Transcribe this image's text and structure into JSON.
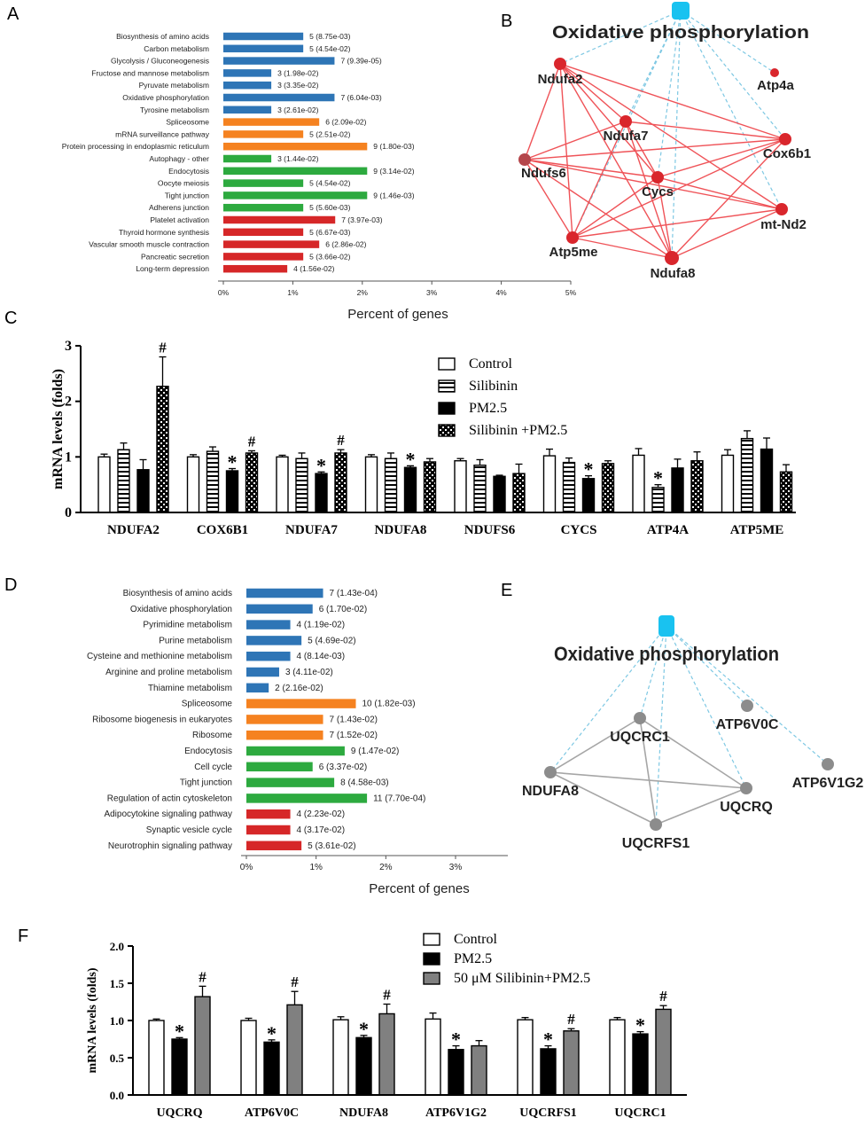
{
  "colors": {
    "blue": "#2E75B6",
    "orange": "#F58220",
    "green": "#2DAA3F",
    "red": "#D62728",
    "node_red": "#D9262C",
    "node_brown": "#B5464B",
    "node_gray": "#8C8C8C",
    "hub": "#19C2F0",
    "edge_red": "#EF5358",
    "edge_gray": "#A6A6A6",
    "edge_dashed": "#7EC8E3",
    "bar_gray": "#808080"
  },
  "panel_letters": [
    "A",
    "B",
    "C",
    "D",
    "E",
    "F"
  ],
  "chart_data": [
    {
      "panel": "A",
      "type": "bar",
      "orientation": "horizontal",
      "xlabel": "Percent of genes",
      "xticks": [
        "0%",
        "1%",
        "2%",
        "3%",
        "4%",
        "5%"
      ],
      "xlim": [
        0,
        5
      ],
      "categories": [
        "Biosynthesis of amino acids",
        "Carbon metabolism",
        "Glycolysis / Gluconeogenesis",
        "Fructose and mannose metabolism",
        "Pyruvate metabolism",
        "Oxidative phosphorylation",
        "Tyrosine metabolism",
        "Spliceosome",
        "mRNA surveillance pathway",
        "Protein processing in endoplasmic reticulum",
        "Autophagy - other",
        "Endocytosis",
        "Oocyte meiosis",
        "Tight junction",
        "Adherens junction",
        "Platelet activation",
        "Thyroid hormone synthesis",
        "Vascular smooth muscle contraction",
        "Pancreatic secretion",
        "Long-term depression"
      ],
      "values": [
        1.15,
        1.15,
        1.6,
        0.69,
        0.69,
        1.6,
        0.69,
        1.38,
        1.15,
        2.07,
        0.69,
        2.07,
        1.15,
        2.07,
        1.15,
        1.61,
        1.15,
        1.38,
        1.15,
        0.92
      ],
      "labels": [
        "5 (8.75e-03)",
        "5 (4.54e-02)",
        "7 (9.39e-05)",
        "3 (1.98e-02)",
        "3 (3.35e-02)",
        "7 (6.04e-03)",
        "3 (2.61e-02)",
        "6 (2.09e-02)",
        "5 (2.51e-02)",
        "9 (1.80e-03)",
        "3 (1.44e-02)",
        "9 (3.14e-02)",
        "5 (4.54e-02)",
        "9 (1.46e-03)",
        "5 (5.60e-03)",
        "7 (3.97e-03)",
        "5 (6.67e-03)",
        "6 (2.86e-02)",
        "5 (3.66e-02)",
        "4 (1.56e-02)"
      ],
      "groups": [
        "blue",
        "blue",
        "blue",
        "blue",
        "blue",
        "blue",
        "blue",
        "orange",
        "orange",
        "orange",
        "green",
        "green",
        "green",
        "green",
        "green",
        "red",
        "red",
        "red",
        "red",
        "red"
      ]
    },
    {
      "panel": "C",
      "type": "bar",
      "ylabel": "mRNA levels (folds)",
      "ylim": [
        0,
        3
      ],
      "yticks": [
        "0",
        "1",
        "2",
        "3"
      ],
      "categories": [
        "NDUFA2",
        "COX6B1",
        "NDUFA7",
        "NDUFA8",
        "NDUFS6",
        "CYCS",
        "ATP4A",
        "ATP5ME"
      ],
      "series": [
        {
          "name": "Control",
          "pattern": "white",
          "values": [
            1.0,
            1.0,
            1.0,
            1.0,
            0.93,
            1.02,
            1.03,
            1.03
          ],
          "errors": [
            0.05,
            0.04,
            0.03,
            0.04,
            0.04,
            0.12,
            0.12,
            0.1
          ]
        },
        {
          "name": "Silibinin",
          "pattern": "hstripe",
          "values": [
            1.13,
            1.1,
            0.97,
            0.97,
            0.85,
            0.9,
            0.45,
            1.33
          ],
          "errors": [
            0.12,
            0.08,
            0.1,
            0.1,
            0.1,
            0.08,
            0.05,
            0.14
          ]
        },
        {
          "name": "PM2.5",
          "pattern": "black",
          "values": [
            0.77,
            0.75,
            0.7,
            0.81,
            0.65,
            0.61,
            0.8,
            1.14
          ],
          "errors": [
            0.18,
            0.04,
            0.03,
            0.03,
            0.02,
            0.05,
            0.16,
            0.2
          ]
        },
        {
          "name": "Silibinin +PM2.5",
          "pattern": "checker",
          "values": [
            2.27,
            1.07,
            1.07,
            0.91,
            0.7,
            0.88,
            0.93,
            0.73
          ],
          "errors": [
            0.53,
            0.04,
            0.06,
            0.06,
            0.17,
            0.05,
            0.16,
            0.13
          ]
        }
      ],
      "annotations": [
        {
          "category": 0,
          "series": 3,
          "text": "#"
        },
        {
          "category": 1,
          "series": 2,
          "text": "*"
        },
        {
          "category": 1,
          "series": 3,
          "text": "#"
        },
        {
          "category": 2,
          "series": 2,
          "text": "*"
        },
        {
          "category": 2,
          "series": 3,
          "text": "#"
        },
        {
          "category": 3,
          "series": 2,
          "text": "*"
        },
        {
          "category": 5,
          "series": 2,
          "text": "*"
        },
        {
          "category": 6,
          "series": 1,
          "text": "*"
        }
      ]
    },
    {
      "panel": "D",
      "type": "bar",
      "orientation": "horizontal",
      "xlabel": "Percent of genes",
      "xticks": [
        "0%",
        "1%",
        "2%",
        "3%"
      ],
      "xlim": [
        0,
        3.75
      ],
      "categories": [
        "Biosynthesis of amino acids",
        "Oxidative phosphorylation",
        "Pyrimidine metabolism",
        "Purine metabolism",
        "Cysteine and methionine metabolism",
        "Arginine and proline metabolism",
        "Thiamine metabolism",
        "Spliceosome",
        "Ribosome biogenesis in eukaryotes",
        "Ribosome",
        "Endocytosis",
        "Cell cycle",
        "Tight junction",
        "Regulation of actin cytoskeleton",
        "Adipocytokine signaling pathway",
        "Synaptic vesicle cycle",
        "Neurotrophin signaling pathway"
      ],
      "values": [
        1.1,
        0.95,
        0.63,
        0.79,
        0.63,
        0.47,
        0.32,
        1.57,
        1.1,
        1.1,
        1.41,
        0.95,
        1.26,
        1.73,
        0.63,
        0.63,
        0.79
      ],
      "labels": [
        "7 (1.43e-04)",
        "6 (1.70e-02)",
        "4 (1.19e-02)",
        "5 (4.69e-02)",
        "4 (8.14e-03)",
        "3 (4.11e-02)",
        "2 (2.16e-02)",
        "10 (1.82e-03)",
        "7 (1.43e-02)",
        "7 (1.52e-02)",
        "9 (1.47e-02)",
        "6 (3.37e-02)",
        "8 (4.58e-03)",
        "11 (7.70e-04)",
        "4 (2.23e-02)",
        "4 (3.17e-02)",
        "5 (3.61e-02)"
      ],
      "groups": [
        "blue",
        "blue",
        "blue",
        "blue",
        "blue",
        "blue",
        "blue",
        "orange",
        "orange",
        "orange",
        "green",
        "green",
        "green",
        "green",
        "red",
        "red",
        "red"
      ]
    },
    {
      "panel": "F",
      "type": "bar",
      "ylabel": "mRNA levels (folds)",
      "ylim": [
        0,
        2
      ],
      "yticks": [
        "0.0",
        "0.5",
        "1.0",
        "1.5",
        "2.0"
      ],
      "categories": [
        "UQCRQ",
        "ATP6V0C",
        "NDUFA8",
        "ATP6V1G2",
        "UQCRFS1",
        "UQCRC1"
      ],
      "series": [
        {
          "name": "Control",
          "pattern": "white",
          "values": [
            1.0,
            1.0,
            1.01,
            1.02,
            1.01,
            1.01
          ],
          "errors": [
            0.02,
            0.03,
            0.04,
            0.08,
            0.03,
            0.03
          ]
        },
        {
          "name": "PM2.5",
          "pattern": "black",
          "values": [
            0.75,
            0.71,
            0.77,
            0.61,
            0.62,
            0.82
          ],
          "errors": [
            0.02,
            0.03,
            0.03,
            0.05,
            0.04,
            0.03
          ]
        },
        {
          "name": "50 μM Silibinin+PM2.5",
          "pattern": "gray",
          "values": [
            1.32,
            1.21,
            1.09,
            0.66,
            0.86,
            1.15
          ],
          "errors": [
            0.14,
            0.18,
            0.13,
            0.07,
            0.03,
            0.05
          ]
        }
      ],
      "annotations": [
        {
          "category": 0,
          "series": 1,
          "text": "*"
        },
        {
          "category": 0,
          "series": 2,
          "text": "#"
        },
        {
          "category": 1,
          "series": 1,
          "text": "*"
        },
        {
          "category": 1,
          "series": 2,
          "text": "#"
        },
        {
          "category": 2,
          "series": 1,
          "text": "*"
        },
        {
          "category": 2,
          "series": 2,
          "text": "#"
        },
        {
          "category": 3,
          "series": 1,
          "text": "*"
        },
        {
          "category": 4,
          "series": 1,
          "text": "*"
        },
        {
          "category": 4,
          "series": 2,
          "text": "#"
        },
        {
          "category": 5,
          "series": 1,
          "text": "*"
        },
        {
          "category": 5,
          "series": 2,
          "text": "#"
        }
      ]
    }
  ],
  "network_b": {
    "hub_title": "Oxidative phosphorylation",
    "nodes": [
      {
        "id": "Ndufa2",
        "color": "node_red"
      },
      {
        "id": "Atp4a",
        "color": "node_red"
      },
      {
        "id": "Ndufa7",
        "color": "node_red"
      },
      {
        "id": "Cox6b1",
        "color": "node_red"
      },
      {
        "id": "Ndufs6",
        "color": "node_brown"
      },
      {
        "id": "Cycs",
        "color": "node_red"
      },
      {
        "id": "mt-Nd2",
        "color": "node_red"
      },
      {
        "id": "Atp5me",
        "color": "node_red"
      },
      {
        "id": "Ndufa8",
        "color": "node_red"
      }
    ],
    "edges": [
      [
        "Ndufa2",
        "Ndufa7"
      ],
      [
        "Ndufa2",
        "Cox6b1"
      ],
      [
        "Ndufa2",
        "Ndufs6"
      ],
      [
        "Ndufa2",
        "Cycs"
      ],
      [
        "Ndufa2",
        "mt-Nd2"
      ],
      [
        "Ndufa2",
        "Atp5me"
      ],
      [
        "Ndufa2",
        "Ndufa8"
      ],
      [
        "Ndufa7",
        "Cox6b1"
      ],
      [
        "Ndufa7",
        "Ndufs6"
      ],
      [
        "Ndufa7",
        "Cycs"
      ],
      [
        "Ndufa7",
        "Atp5me"
      ],
      [
        "Ndufa7",
        "Ndufa8"
      ],
      [
        "Cox6b1",
        "Ndufs6"
      ],
      [
        "Cox6b1",
        "Cycs"
      ],
      [
        "Cox6b1",
        "Atp5me"
      ],
      [
        "Cox6b1",
        "Ndufa8"
      ],
      [
        "Ndufs6",
        "mt-Nd2"
      ],
      [
        "Ndufs6",
        "Atp5me"
      ],
      [
        "Ndufs6",
        "Ndufa8"
      ],
      [
        "Ndufs6",
        "Cycs"
      ],
      [
        "Cycs",
        "Atp5me"
      ],
      [
        "Cycs",
        "Ndufa8"
      ],
      [
        "Cycs",
        "mt-Nd2"
      ],
      [
        "Atp5me",
        "Ndufa8"
      ],
      [
        "Atp5me",
        "mt-Nd2"
      ],
      [
        "Ndufa8",
        "mt-Nd2"
      ]
    ],
    "hub_edges": [
      "Ndufa2",
      "Atp4a",
      "Ndufa7",
      "Cox6b1",
      "Cycs",
      "mt-Nd2",
      "Atp5me",
      "Ndufa8"
    ]
  },
  "network_e": {
    "hub_title": "Oxidative phosphorylation",
    "nodes": [
      {
        "id": "UQCRC1",
        "color": "node_gray"
      },
      {
        "id": "ATP6V0C",
        "color": "node_gray"
      },
      {
        "id": "ATP6V1G2",
        "color": "node_gray"
      },
      {
        "id": "NDUFA8",
        "color": "node_gray"
      },
      {
        "id": "UQCRQ",
        "color": "node_gray"
      },
      {
        "id": "UQCRFS1",
        "color": "node_gray"
      }
    ],
    "edges": [
      [
        "UQCRC1",
        "NDUFA8"
      ],
      [
        "UQCRC1",
        "UQCRQ"
      ],
      [
        "UQCRC1",
        "UQCRFS1"
      ],
      [
        "NDUFA8",
        "UQCRQ"
      ],
      [
        "NDUFA8",
        "UQCRFS1"
      ],
      [
        "UQCRFS1",
        "UQCRQ"
      ]
    ],
    "hub_edges": [
      "UQCRC1",
      "ATP6V0C",
      "ATP6V1G2",
      "NDUFA8",
      "UQCRQ",
      "UQCRFS1"
    ]
  }
}
